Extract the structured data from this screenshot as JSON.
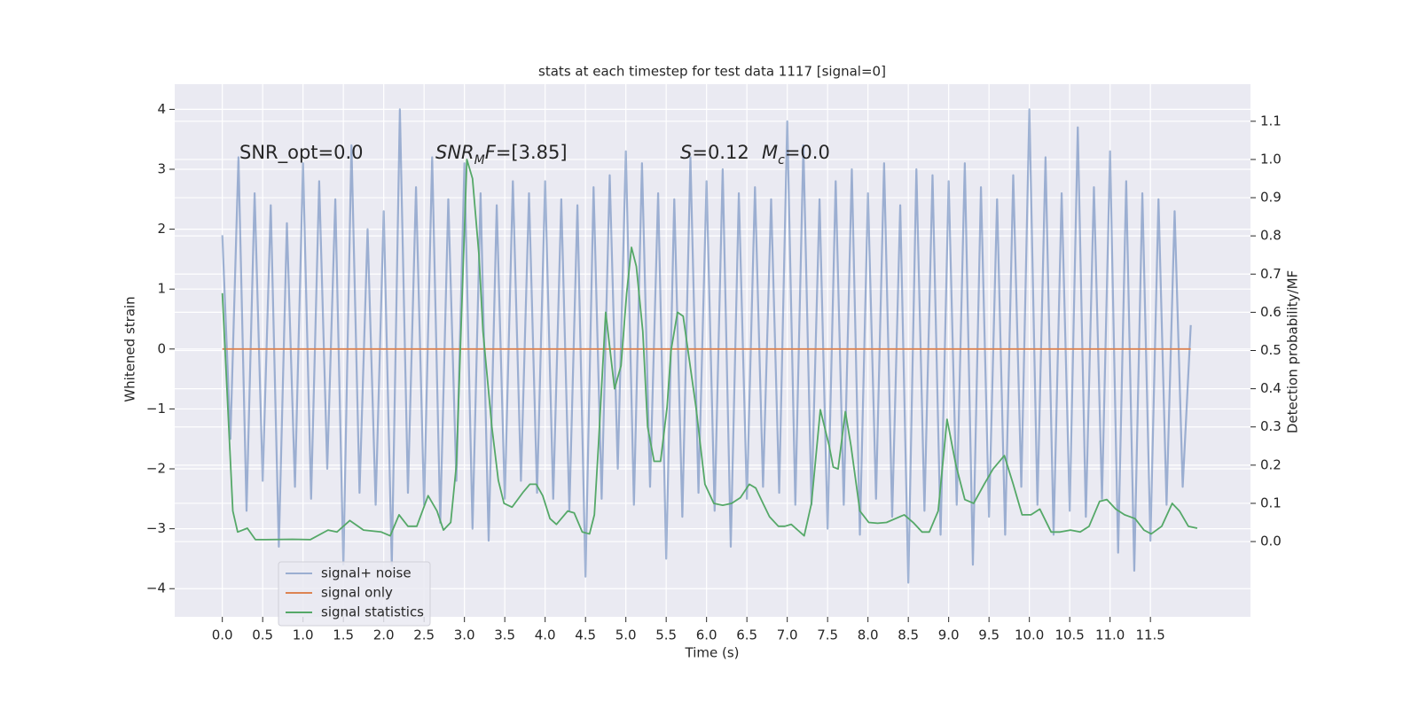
{
  "chart_data": {
    "type": "line",
    "title": "stats at each timestep for test data 1117 [signal=0]",
    "xlabel": "Time (s)",
    "ylabel": "Whitened strain",
    "y2label": "Detection probability/MF",
    "xlim": [
      -0.59,
      12.74
    ],
    "ylim": [
      -4.47,
      4.42
    ],
    "y2lim": [
      -0.197,
      1.197
    ],
    "xticks": [
      {
        "value": 0,
        "label": "0.0"
      },
      {
        "value": 0.5,
        "label": "0.5"
      },
      {
        "value": 1,
        "label": "1.0"
      },
      {
        "value": 1.5,
        "label": "1.5"
      },
      {
        "value": 2,
        "label": "2.0"
      },
      {
        "value": 2.5,
        "label": "2.5"
      },
      {
        "value": 3,
        "label": "3.0"
      },
      {
        "value": 3.5,
        "label": "3.5"
      },
      {
        "value": 4,
        "label": "4.0"
      },
      {
        "value": 4.5,
        "label": "4.5"
      },
      {
        "value": 5,
        "label": "5.0"
      },
      {
        "value": 5.5,
        "label": "5.5"
      },
      {
        "value": 6,
        "label": "6.0"
      },
      {
        "value": 6.5,
        "label": "6.5"
      },
      {
        "value": 7,
        "label": "7.0"
      },
      {
        "value": 7.5,
        "label": "7.5"
      },
      {
        "value": 8,
        "label": "8.0"
      },
      {
        "value": 8.5,
        "label": "8.5"
      },
      {
        "value": 9,
        "label": "9.0"
      },
      {
        "value": 9.5,
        "label": "9.5"
      },
      {
        "value": 10,
        "label": "10.0"
      },
      {
        "value": 10.5,
        "label": "10.5"
      },
      {
        "value": 11,
        "label": "11.0"
      },
      {
        "value": 11.5,
        "label": "11.5"
      }
    ],
    "yticks": [
      {
        "value": -4,
        "label": "−4"
      },
      {
        "value": -3,
        "label": "−3"
      },
      {
        "value": -2,
        "label": "−2"
      },
      {
        "value": -1,
        "label": "−1"
      },
      0,
      1,
      2,
      3,
      4
    ],
    "y2ticks": [
      {
        "value": 0,
        "label": "0.0"
      },
      {
        "value": 0.1,
        "label": "0.1"
      },
      {
        "value": 0.2,
        "label": "0.2"
      },
      {
        "value": 0.3,
        "label": "0.3"
      },
      {
        "value": 0.4,
        "label": "0.4"
      },
      {
        "value": 0.5,
        "label": "0.5"
      },
      {
        "value": 0.6,
        "label": "0.6"
      },
      {
        "value": 0.7,
        "label": "0.7"
      },
      {
        "value": 0.8,
        "label": "0.8"
      },
      {
        "value": 0.9,
        "label": "0.9"
      },
      {
        "value": 1,
        "label": "1.0"
      },
      {
        "value": 1.1,
        "label": "1.1"
      }
    ],
    "grid": true,
    "legend": "lower left",
    "annotations": [
      [
        {
          "text": "SNR_opt=0.0"
        }
      ],
      [
        {
          "text": "SNR",
          "style": "italic"
        },
        {
          "text": "M",
          "style": "sub"
        },
        {
          "text": "F",
          "style": "italic"
        },
        {
          "text": "=[3.85]"
        }
      ],
      [
        {
          "text": "S",
          "style": "italic"
        },
        {
          "text": "=0.12"
        }
      ],
      [
        {
          "text": "M",
          "style": "italic"
        },
        {
          "text": "c",
          "style": "sub"
        },
        {
          "text": "=0.0"
        }
      ]
    ],
    "series": [
      {
        "name": "signal+ noise",
        "color": "#4c72b0",
        "alpha": 0.5,
        "x": [
          0,
          0.1,
          0.2,
          0.3,
          0.4,
          0.5,
          0.6,
          0.7,
          0.8,
          0.9,
          1,
          1.1,
          1.2,
          1.3,
          1.4,
          1.5,
          1.6,
          1.7,
          1.8,
          1.9,
          2,
          2.1,
          2.2,
          2.3,
          2.4,
          2.5,
          2.6,
          2.7,
          2.8,
          2.9,
          3,
          3.1,
          3.2,
          3.3,
          3.4,
          3.5,
          3.6,
          3.7,
          3.8,
          3.9,
          4,
          4.1,
          4.2,
          4.3,
          4.4,
          4.5,
          4.6,
          4.7,
          4.8,
          4.9,
          5,
          5.1,
          5.2,
          5.3,
          5.4,
          5.5,
          5.6,
          5.7,
          5.8,
          5.9,
          6,
          6.1,
          6.2,
          6.3,
          6.4,
          6.5,
          6.6,
          6.7,
          6.8,
          6.9,
          7,
          7.1,
          7.2,
          7.3,
          7.4,
          7.5,
          7.6,
          7.7,
          7.8,
          7.9,
          8,
          8.1,
          8.2,
          8.3,
          8.4,
          8.5,
          8.6,
          8.7,
          8.8,
          8.9,
          9,
          9.1,
          9.2,
          9.3,
          9.4,
          9.5,
          9.6,
          9.7,
          9.8,
          9.9,
          10,
          10.1,
          10.2,
          10.3,
          10.4,
          10.5,
          10.6,
          10.7,
          10.8,
          10.9,
          11,
          11.1,
          11.2,
          11.3,
          11.4,
          11.5,
          11.6,
          11.7,
          11.8,
          11.9,
          12
        ],
        "values": [
          1.9,
          -1.5,
          3.2,
          -2.7,
          2.6,
          -2.2,
          2.4,
          -3.3,
          2.1,
          -2.3,
          3.1,
          -2.5,
          2.8,
          -2.0,
          2.5,
          -3.6,
          3.4,
          -2.4,
          2.0,
          -2.6,
          2.3,
          -3.6,
          4.0,
          -2.4,
          2.7,
          -2.6,
          3.2,
          -2.9,
          2.5,
          -2.2,
          3.1,
          -3.0,
          2.6,
          -3.2,
          2.4,
          -2.5,
          2.8,
          -2.2,
          2.6,
          -2.4,
          2.8,
          -2.5,
          2.5,
          -2.7,
          2.4,
          -3.8,
          2.7,
          -2.5,
          2.9,
          -2.0,
          3.3,
          -2.6,
          3.1,
          -2.3,
          2.6,
          -3.5,
          2.5,
          -2.8,
          3.2,
          -2.4,
          2.8,
          -2.7,
          3.0,
          -3.3,
          2.6,
          -2.5,
          2.7,
          -2.3,
          2.5,
          -2.4,
          3.8,
          -2.6,
          3.4,
          -2.6,
          2.5,
          -3.0,
          2.8,
          -2.6,
          3.0,
          -3.1,
          2.6,
          -2.5,
          3.1,
          -2.8,
          2.4,
          -3.9,
          3.0,
          -2.7,
          2.9,
          -3.1,
          2.8,
          -2.6,
          3.1,
          -3.6,
          2.7,
          -2.8,
          2.5,
          -3.1,
          2.9,
          -2.3,
          4.0,
          -2.6,
          3.2,
          -3.1,
          2.6,
          -2.7,
          3.7,
          -2.8,
          2.7,
          -2.5,
          3.3,
          -3.4,
          2.8,
          -3.7,
          2.6,
          -3.2,
          2.5,
          -2.6,
          2.3,
          -2.3,
          0.4
        ]
      },
      {
        "name": "signal only",
        "color": "#dd8452",
        "x": [
          0,
          12
        ],
        "values": [
          0,
          0
        ]
      },
      {
        "name": "signal statistics",
        "color": "#55a868",
        "axis": "y2",
        "x": [
          0,
          0.13,
          0.19,
          0.31,
          0.41,
          0.54,
          0.87,
          1.09,
          1.31,
          1.42,
          1.58,
          1.75,
          1.97,
          2.08,
          2.19,
          2.3,
          2.41,
          2.55,
          2.66,
          2.74,
          2.83,
          2.9,
          3.03,
          3.1,
          3.18,
          3.23,
          3.34,
          3.42,
          3.49,
          3.59,
          3.73,
          3.81,
          3.89,
          3.97,
          4.06,
          4.14,
          4.28,
          4.36,
          4.46,
          4.55,
          4.61,
          4.66,
          4.75,
          4.86,
          4.94,
          5.01,
          5.07,
          5.13,
          5.21,
          5.27,
          5.35,
          5.43,
          5.51,
          5.56,
          5.64,
          5.71,
          5.79,
          5.87,
          5.98,
          6.09,
          6.2,
          6.31,
          6.42,
          6.53,
          6.61,
          6.7,
          6.78,
          6.89,
          6.97,
          7.05,
          7.13,
          7.21,
          7.3,
          7.41,
          7.52,
          7.57,
          7.63,
          7.72,
          7.79,
          7.9,
          8.01,
          8.12,
          8.23,
          8.34,
          8.45,
          8.56,
          8.67,
          8.76,
          8.87,
          8.98,
          9.09,
          9.2,
          9.31,
          9.44,
          9.55,
          9.69,
          9.8,
          9.91,
          10.02,
          10.13,
          10.27,
          10.38,
          10.51,
          10.63,
          10.74,
          10.87,
          10.96,
          11.07,
          11.18,
          11.31,
          11.42,
          11.51,
          11.64,
          11.77,
          11.86,
          11.97,
          12.08
        ],
        "values": [
          0.65,
          0.08,
          0.025,
          0.035,
          0.005,
          0.005,
          0.006,
          0.005,
          0.03,
          0.025,
          0.055,
          0.03,
          0.025,
          0.015,
          0.07,
          0.04,
          0.04,
          0.12,
          0.08,
          0.03,
          0.05,
          0.2,
          1.0,
          0.95,
          0.75,
          0.55,
          0.3,
          0.16,
          0.1,
          0.09,
          0.13,
          0.15,
          0.15,
          0.12,
          0.06,
          0.045,
          0.08,
          0.075,
          0.025,
          0.02,
          0.07,
          0.25,
          0.6,
          0.4,
          0.46,
          0.65,
          0.77,
          0.72,
          0.55,
          0.3,
          0.21,
          0.21,
          0.35,
          0.5,
          0.6,
          0.59,
          0.47,
          0.35,
          0.15,
          0.1,
          0.095,
          0.1,
          0.115,
          0.15,
          0.14,
          0.1,
          0.065,
          0.04,
          0.04,
          0.045,
          0.03,
          0.015,
          0.1,
          0.345,
          0.25,
          0.195,
          0.19,
          0.34,
          0.25,
          0.08,
          0.05,
          0.048,
          0.05,
          0.06,
          0.07,
          0.05,
          0.025,
          0.025,
          0.08,
          0.32,
          0.2,
          0.11,
          0.1,
          0.15,
          0.19,
          0.225,
          0.15,
          0.07,
          0.07,
          0.085,
          0.025,
          0.025,
          0.03,
          0.025,
          0.04,
          0.105,
          0.11,
          0.085,
          0.07,
          0.06,
          0.03,
          0.02,
          0.04,
          0.1,
          0.08,
          0.04,
          0.035
        ]
      }
    ]
  }
}
